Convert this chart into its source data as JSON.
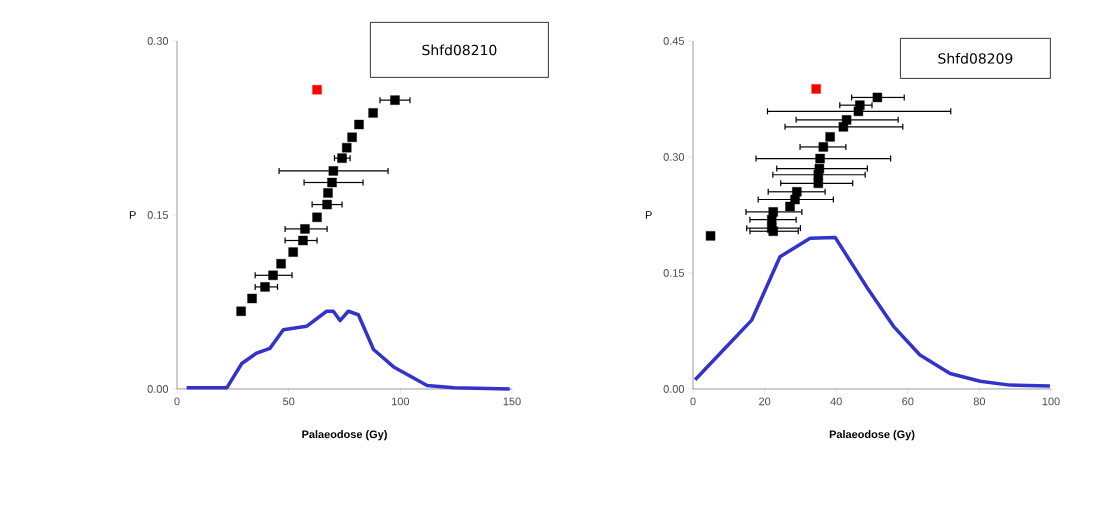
{
  "chart_data": [
    {
      "type": "scatter",
      "xlabel": "Palaeodose (Gy)",
      "ylabel": "P",
      "annotations": [
        "Shfd08210"
      ],
      "xlim": [
        0,
        150
      ],
      "ylim": [
        0,
        0.3
      ],
      "xticks": [
        0,
        50,
        100,
        150
      ],
      "yticks": [
        {
          "value": 0,
          "label": "0.00"
        },
        {
          "value": 0.15,
          "label": "0.15"
        },
        {
          "value": 0.3,
          "label": "0.30"
        }
      ],
      "marker": "square",
      "series": [
        {
          "type": "scatter",
          "color": "#000000",
          "x": [
            28.7,
            33.6,
            39.4,
            43,
            46.6,
            52,
            56.4,
            57.3,
            62.7,
            67.2,
            67.6,
            69.4,
            70,
            73.9,
            76,
            78.4,
            81.5,
            87.8,
            97.6
          ],
          "values": [
            0.067,
            0.078,
            0.088,
            0.098,
            0.108,
            0.118,
            0.128,
            0.138,
            0.148,
            0.159,
            0.169,
            0.178,
            0.188,
            0.199,
            0.208,
            0.217,
            0.228,
            0.238,
            0.249
          ],
          "xerrors": [
            null,
            null,
            [
              35,
              45
            ],
            [
              35,
              51.5
            ],
            null,
            null,
            [
              48.4,
              62.7
            ],
            [
              48.4,
              67.2
            ],
            null,
            [
              60.5,
              73.9
            ],
            null,
            [
              56.9,
              83.3
            ],
            [
              45.7,
              94.5
            ],
            [
              70.5,
              77.5
            ],
            null,
            null,
            null,
            null,
            [
              90.9,
              104.3
            ]
          ]
        },
        {
          "type": "scatter",
          "color": "#ff0000",
          "x": [
            62.7
          ],
          "values": [
            0.258
          ]
        },
        {
          "type": "line",
          "color": "#3333cc",
          "marker": "none",
          "x": [
            4.3,
            22.3,
            29,
            35.7,
            41.6,
            47.6,
            58,
            67,
            70,
            73,
            76.7,
            81.2,
            88,
            97,
            112,
            124,
            149
          ],
          "values": [
            0.001,
            0.001,
            0.022,
            0.031,
            0.035,
            0.051,
            0.054,
            0.067,
            0.067,
            0.059,
            0.067,
            0.064,
            0.034,
            0.019,
            0.003,
            0.001,
            0
          ]
        }
      ]
    },
    {
      "type": "scatter",
      "xlabel": "Palaeodose (Gy)",
      "ylabel": "P",
      "annotations": [
        "Shfd08209"
      ],
      "xlim": [
        0,
        100
      ],
      "ylim": [
        0,
        0.45
      ],
      "xticks": [
        0,
        20,
        40,
        60,
        80,
        100
      ],
      "yticks": [
        {
          "value": 0,
          "label": "0.00"
        },
        {
          "value": 0.15,
          "label": "0.15"
        },
        {
          "value": 0.3,
          "label": "0.30"
        },
        {
          "value": 0.45,
          "label": "0.45"
        }
      ],
      "marker": "square",
      "series": [
        {
          "type": "scatter",
          "color": "#000000",
          "x": [
            4.9,
            22.4,
            22,
            22,
            22.4,
            27.1,
            28.5,
            29,
            35,
            35,
            35.3,
            35.5,
            36.4,
            38.3,
            42,
            42.9,
            46.2,
            46.6,
            51.5
          ],
          "values": [
            0.198,
            0.204,
            0.208,
            0.219,
            0.229,
            0.236,
            0.245,
            0.255,
            0.266,
            0.277,
            0.285,
            0.298,
            0.313,
            0.326,
            0.339,
            0.348,
            0.359,
            0.367,
            0.377
          ],
          "xerrors": [
            null,
            [
              15.9,
              29.4
            ],
            [
              15,
              30
            ],
            [
              15.9,
              28.8
            ],
            [
              14.8,
              30.4
            ],
            null,
            [
              18.2,
              39.2
            ],
            [
              21,
              36.9
            ],
            [
              24.5,
              44.6
            ],
            [
              22.3,
              48.1
            ],
            [
              23.4,
              48.7
            ],
            [
              17.6,
              55.2
            ],
            [
              29.9,
              42.7
            ],
            null,
            [
              25.7,
              58.6
            ],
            [
              28.8,
              57.3
            ],
            [
              20.8,
              72
            ],
            [
              41,
              50
            ],
            [
              44.3,
              59
            ]
          ]
        },
        {
          "type": "scatter",
          "color": "#ff0000",
          "x": [
            34.4
          ],
          "values": [
            0.388
          ]
        },
        {
          "type": "line",
          "color": "#3333cc",
          "marker": "none",
          "x": [
            0.6,
            9.4,
            16.4,
            24.3,
            32.7,
            39.7,
            48.5,
            56,
            63.4,
            71.8,
            80.2,
            88.5,
            99.7
          ],
          "values": [
            0.012,
            0.055,
            0.089,
            0.171,
            0.195,
            0.196,
            0.132,
            0.081,
            0.044,
            0.02,
            0.01,
            0.005,
            0.004
          ]
        }
      ]
    }
  ]
}
